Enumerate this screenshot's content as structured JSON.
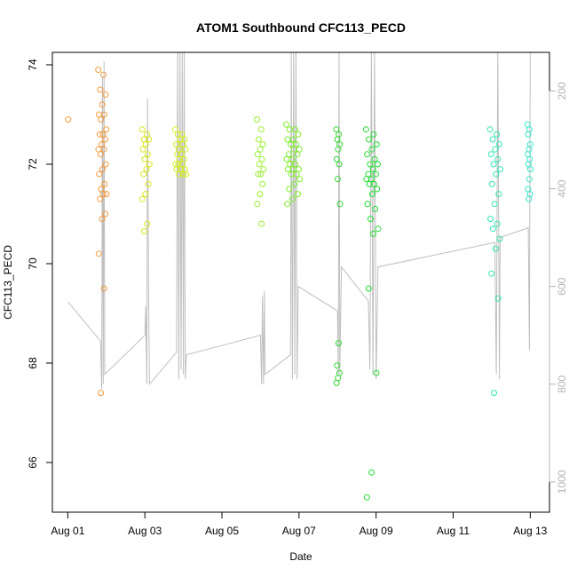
{
  "chart_data": {
    "type": "scatter",
    "title": "ATOM1 Southbound CFC113_PECD",
    "xlabel": "Date",
    "ylabel": "CFC113_PECD",
    "x_unit": "day of month (August)",
    "xlim": [
      0.6,
      13.5
    ],
    "ylim": [
      65.0,
      74.25
    ],
    "x_ticks": [
      1,
      3,
      5,
      7,
      9,
      11,
      13
    ],
    "x_tick_labels": [
      "Aug 01",
      "Aug 03",
      "Aug 05",
      "Aug 07",
      "Aug 09",
      "Aug 11",
      "Aug 13"
    ],
    "y_ticks": [
      66,
      68,
      70,
      72,
      74
    ],
    "y_tick_labels": [
      "66",
      "68",
      "70",
      "72",
      "74"
    ],
    "right_axis": {
      "reversed": true,
      "ylim": [
        1062,
        121
      ],
      "ticks": [
        200,
        400,
        600,
        800,
        1000
      ],
      "tick_labels": [
        "200",
        "400",
        "600",
        "800",
        "1000"
      ],
      "color": "#b3b3b3"
    },
    "grid": false,
    "legend": "none",
    "marker": "open-circle",
    "clusters": [
      {
        "x": 1.01,
        "spread": 0.0,
        "color": "#f39a3c",
        "values": [
          72.9
        ]
      },
      {
        "x": 1.9,
        "spread": 0.11,
        "color": "#f39a3c",
        "values": [
          73.9,
          73.8,
          73.5,
          73.4,
          73.2,
          73.0,
          73.0,
          72.9,
          72.7,
          72.6,
          72.6,
          72.5,
          72.4,
          72.3,
          72.3,
          72.2,
          72.0,
          71.9,
          71.8,
          71.6,
          71.5,
          71.4,
          71.4,
          71.3,
          71.0,
          70.9,
          70.2,
          69.5,
          67.4
        ]
      },
      {
        "x": 3.03,
        "spread": 0.1,
        "color": "#d8e619",
        "values": [
          72.7,
          72.6,
          72.5,
          72.5,
          72.4,
          72.3,
          72.2,
          72.1,
          72.0,
          71.9,
          71.8,
          71.6,
          71.4,
          71.3,
          70.8,
          70.65
        ]
      },
      {
        "x": 3.93,
        "spread": 0.14,
        "color": "#d5ef1a",
        "values": [
          72.7,
          72.6,
          72.6,
          72.5,
          72.5,
          72.4,
          72.4,
          72.3,
          72.3,
          72.2,
          72.2,
          72.1,
          72.1,
          72.0,
          72.0,
          72.0,
          71.9,
          71.9,
          71.9,
          71.8,
          71.8,
          71.8
        ]
      },
      {
        "x": 6.0,
        "spread": 0.09,
        "color": "#9aef33",
        "values": [
          72.9,
          72.7,
          72.5,
          72.4,
          72.3,
          72.2,
          72.1,
          72.0,
          71.9,
          71.8,
          71.8,
          71.6,
          71.4,
          71.2,
          70.8
        ]
      },
      {
        "x": 6.85,
        "spread": 0.18,
        "color": "#7eef2a",
        "values": [
          72.8,
          72.7,
          72.7,
          72.6,
          72.5,
          72.5,
          72.4,
          72.4,
          72.3,
          72.3,
          72.2,
          72.2,
          72.1,
          72.1,
          72.0,
          72.0,
          71.9,
          71.9,
          71.9,
          71.8,
          71.8,
          71.7,
          71.6,
          71.5,
          71.4,
          71.3,
          71.2
        ]
      },
      {
        "x": 8.02,
        "spread": 0.05,
        "color": "#33d633",
        "values": [
          72.7,
          72.6,
          72.5,
          72.4,
          72.3,
          72.1,
          72.0,
          71.7,
          71.2,
          68.4,
          67.95,
          67.8,
          67.7,
          67.6
        ]
      },
      {
        "x": 8.9,
        "spread": 0.16,
        "color": "#22dd33",
        "values": [
          72.7,
          72.6,
          72.5,
          72.4,
          72.3,
          72.2,
          72.1,
          72.0,
          72.0,
          71.9,
          71.8,
          71.8,
          71.7,
          71.7,
          71.6,
          71.6,
          71.5,
          71.4,
          71.2,
          71.1,
          70.9,
          70.7,
          70.6,
          69.5,
          67.8,
          65.8,
          65.3
        ]
      },
      {
        "x": 12.1,
        "spread": 0.14,
        "color": "#33e6b3",
        "values": [
          72.7,
          72.6,
          72.5,
          72.4,
          72.3,
          72.2,
          72.1,
          72.0,
          71.9,
          71.8,
          71.6,
          71.4,
          71.2,
          70.9,
          70.8,
          70.7,
          70.5,
          70.3,
          69.8,
          69.3,
          67.4
        ]
      },
      {
        "x": 12.97,
        "spread": 0.04,
        "color": "#33e6cc",
        "values": [
          72.8,
          72.7,
          72.6,
          72.4,
          72.3,
          72.2,
          72.1,
          72.0,
          71.9,
          71.7,
          71.5,
          71.4,
          71.3
        ]
      }
    ],
    "pressure_trace": {
      "color": "#bfbfbf",
      "x": [
        1.01,
        1.85,
        1.88,
        1.9,
        1.92,
        1.94,
        1.96,
        3.0,
        3.02,
        3.05,
        3.07,
        3.1,
        3.12,
        3.82,
        3.85,
        3.88,
        3.91,
        3.94,
        3.97,
        4.0,
        4.02,
        4.05,
        4.08,
        6.0,
        6.03,
        6.05,
        6.08,
        6.1,
        6.12,
        6.78,
        6.8,
        6.83,
        6.86,
        6.89,
        6.92,
        6.95,
        6.98,
        8.0,
        8.02,
        8.04,
        8.06,
        8.1,
        8.8,
        8.84,
        8.88,
        8.92,
        8.96,
        9.0,
        9.05,
        12.08,
        12.12,
        12.16,
        12.2,
        12.22,
        12.95,
        12.98,
        13.0
      ],
      "y": [
        632,
        712,
        810,
        170,
        800,
        140,
        780,
        700,
        640,
        800,
        215,
        640,
        800,
        735,
        110,
        790,
        110,
        770,
        110,
        780,
        110,
        790,
        740,
        700,
        800,
        620,
        800,
        610,
        780,
        740,
        110,
        790,
        110,
        780,
        110,
        790,
        600,
        650,
        780,
        110,
        780,
        560,
        630,
        770,
        110,
        780,
        110,
        790,
        560,
        510,
        780,
        110,
        790,
        500,
        480,
        730,
        121
      ]
    }
  }
}
